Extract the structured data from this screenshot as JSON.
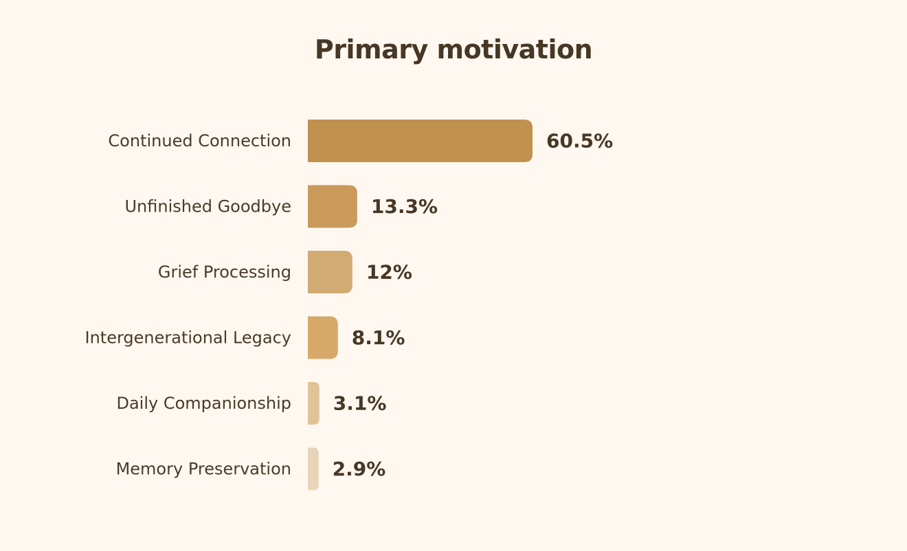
{
  "chart_data": {
    "type": "bar",
    "orientation": "horizontal",
    "title": "Primary motivation",
    "categories": [
      "Continued Connection",
      "Unfinished Goodbye",
      "Grief Processing",
      "Intergenerational Legacy",
      "Daily Companionship",
      "Memory Preservation"
    ],
    "values": [
      60.5,
      13.3,
      12,
      8.1,
      3.1,
      2.9
    ],
    "value_labels": [
      "60.5%",
      "13.3%",
      "12%",
      "8.1%",
      "3.1%",
      "2.9%"
    ],
    "xlim": [
      0,
      60.5
    ],
    "grid": false,
    "legend": "none",
    "colors": [
      "#c19150",
      "#c99a5a",
      "#d2aa73",
      "#d7a968",
      "#e0c498",
      "#e6d5b8"
    ],
    "background": "#fef8f0"
  }
}
